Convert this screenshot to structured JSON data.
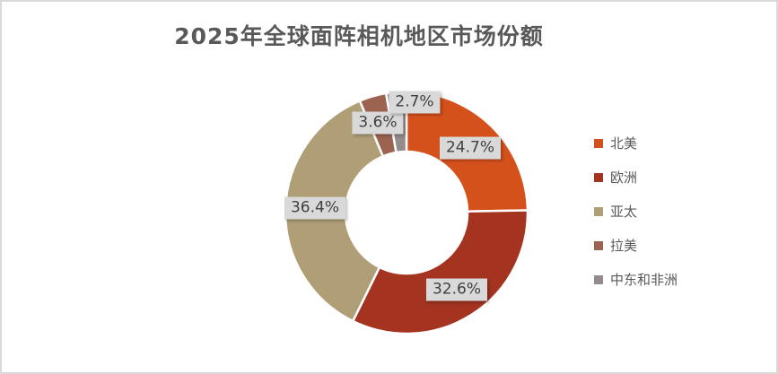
{
  "frame": {
    "background": "#FFFFFF",
    "border_color": "#D9D9D9"
  },
  "chart_data": {
    "type": "pie",
    "subtype": "donut",
    "title": "2025年全球面阵相机地区市场份额",
    "categories": [
      "北美",
      "欧洲",
      "亚太",
      "拉美",
      "中东和非洲"
    ],
    "values": [
      24.7,
      32.6,
      36.4,
      3.6,
      2.7
    ],
    "unit": "%",
    "data_labels": [
      "24.7%",
      "32.6%",
      "36.4%",
      "3.6%",
      "2.7%"
    ],
    "colors": [
      "#D5511C",
      "#A43320",
      "#B09E76",
      "#9C6351",
      "#948C8C"
    ],
    "start_angle_deg": 0,
    "direction": "clockwise",
    "inner_radius_ratio": 0.5,
    "slice_separator_color": "#FFFFFF",
    "legend_position": "right",
    "label_background": "#D9D9D9",
    "label_text_color": "#404040",
    "title_color": "#595959",
    "legend_text_color": "#595959"
  }
}
